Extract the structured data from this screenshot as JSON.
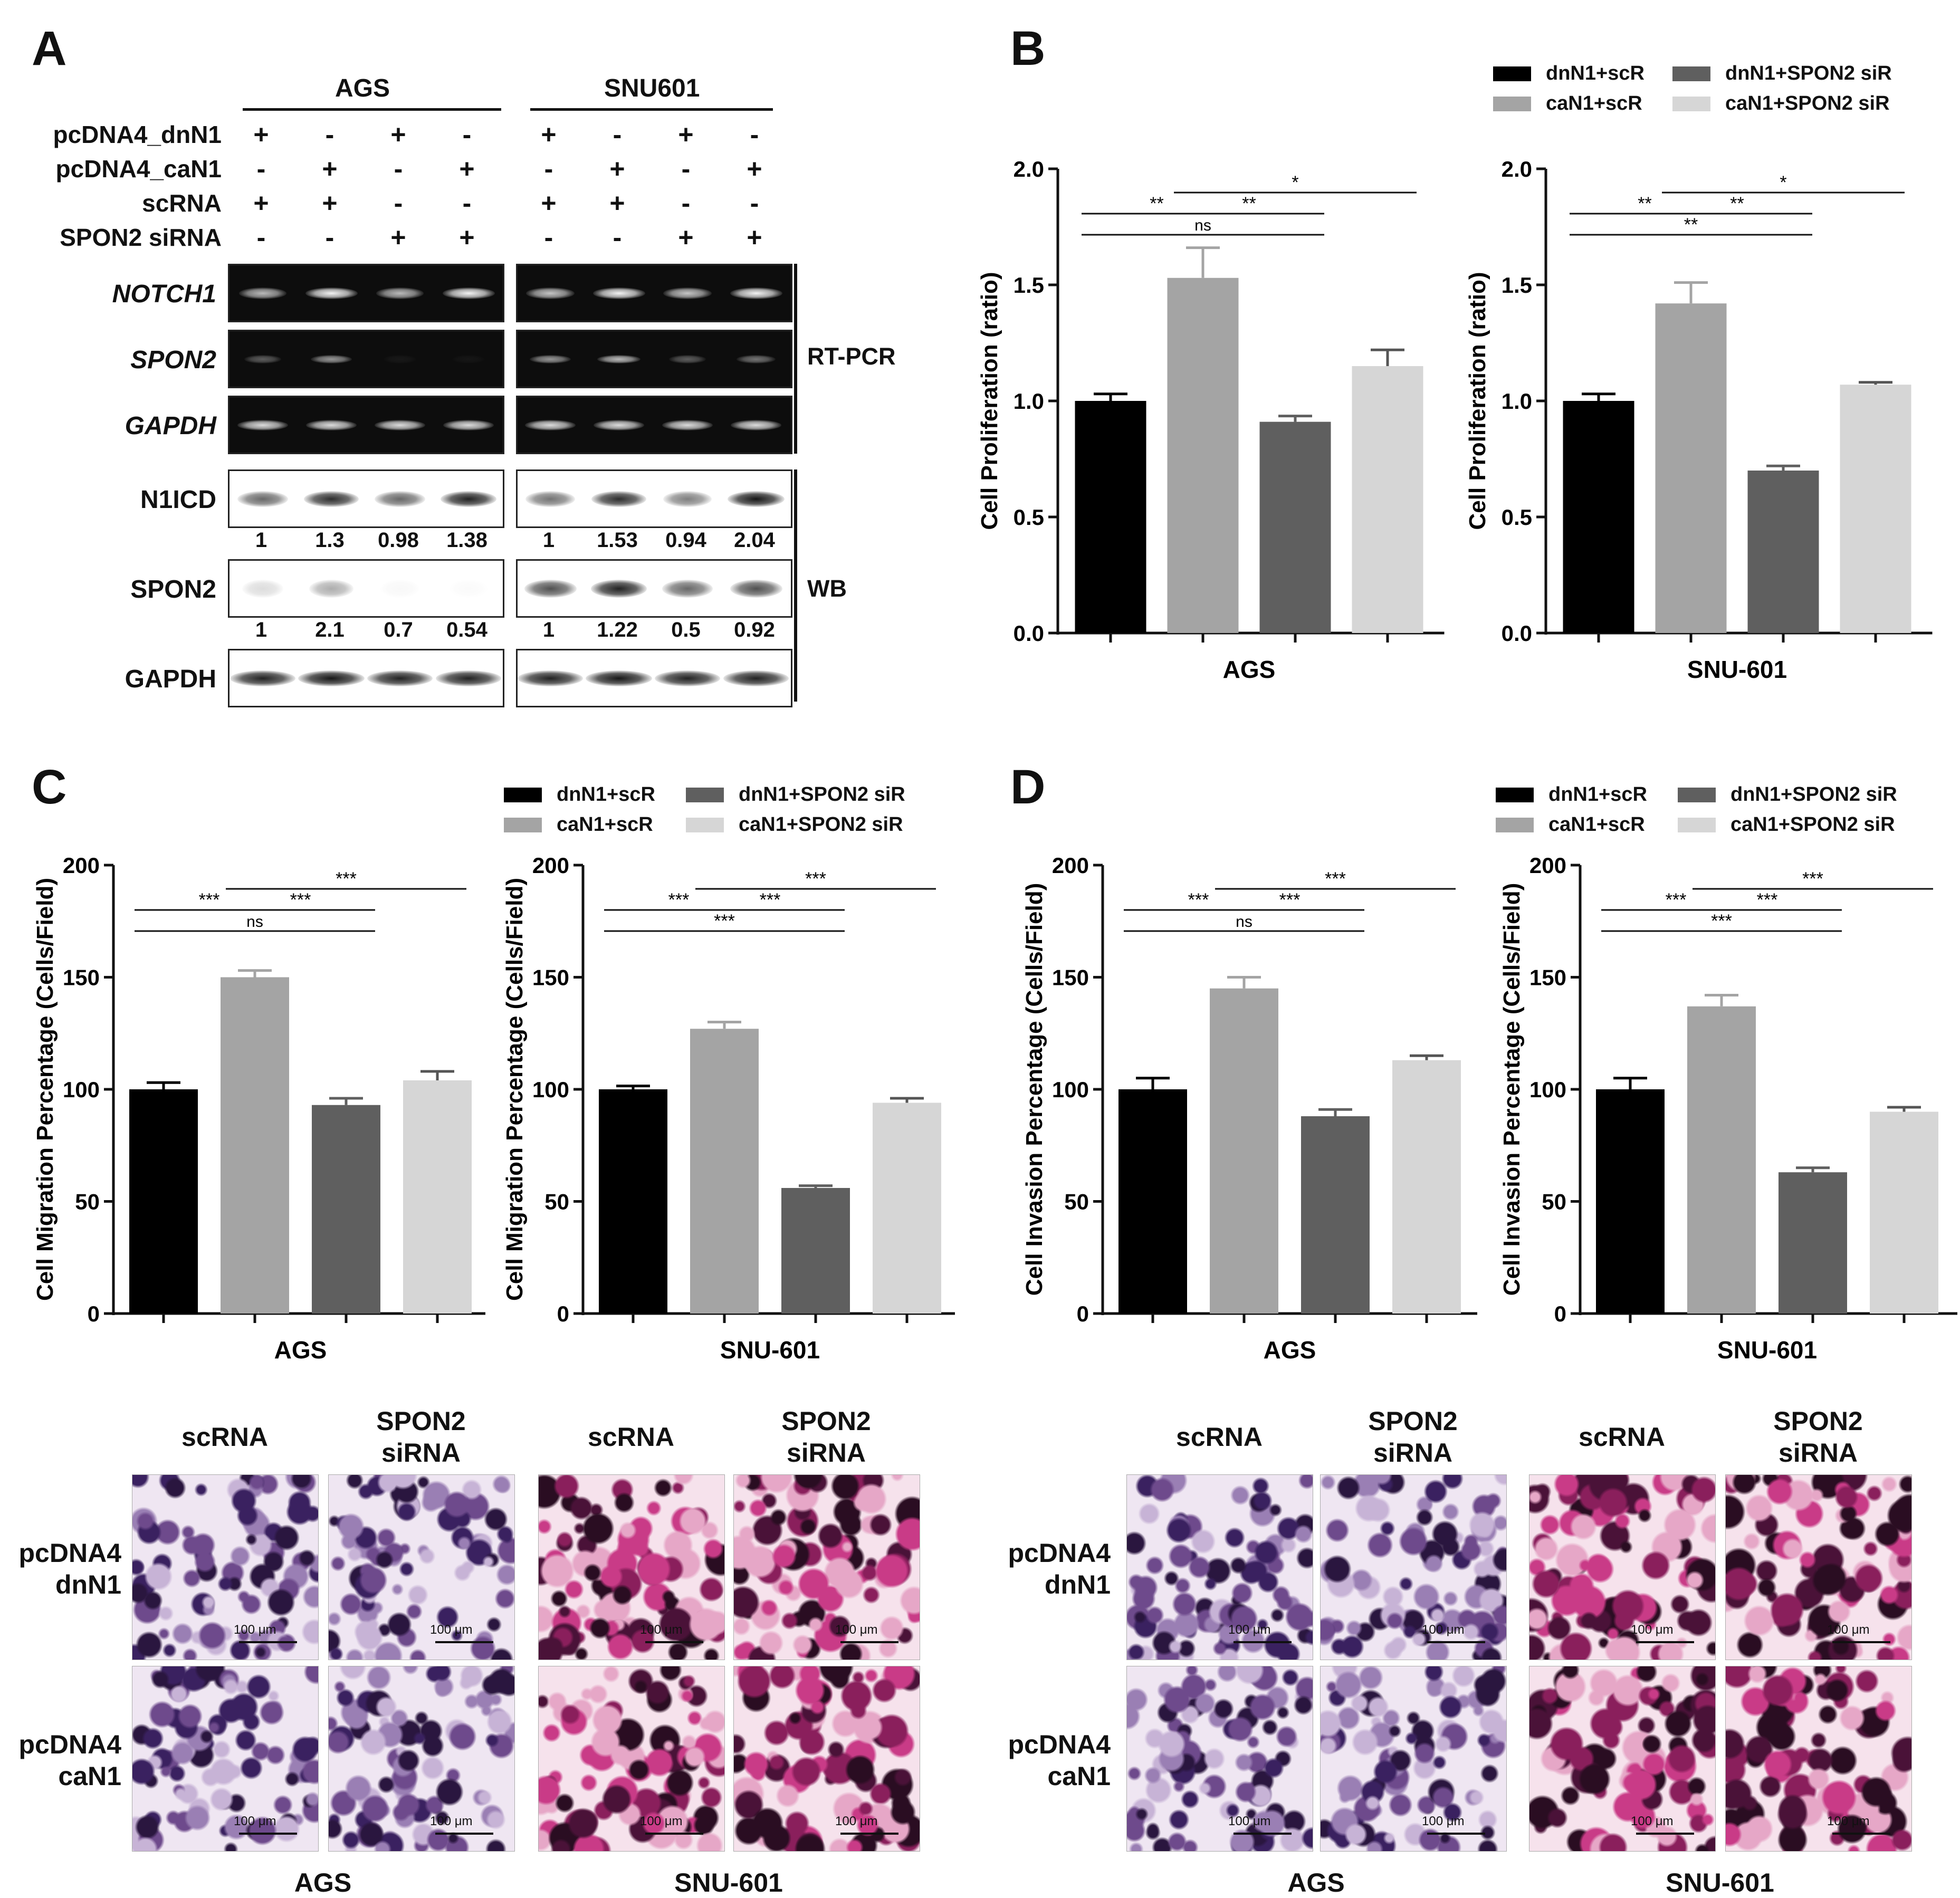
{
  "panel_a": {
    "letter": "A",
    "lines": {
      "ags": "AGS",
      "snu": "SNU601"
    },
    "rows": [
      {
        "name": "pcDNA4_dnN1",
        "ags": [
          "+",
          "-",
          "+",
          "-"
        ],
        "snu": [
          "+",
          "-",
          "+",
          "-"
        ]
      },
      {
        "name": "pcDNA4_caN1",
        "ags": [
          "-",
          "+",
          "-",
          "+"
        ],
        "snu": [
          "-",
          "+",
          "-",
          "+"
        ]
      },
      {
        "name": "scRNA",
        "ags": [
          "+",
          "+",
          "-",
          "-"
        ],
        "snu": [
          "+",
          "+",
          "-",
          "-"
        ]
      },
      {
        "name": "SPON2 siRNA",
        "ags": [
          "-",
          "-",
          "+",
          "+"
        ],
        "snu": [
          "-",
          "-",
          "+",
          "+"
        ]
      }
    ],
    "gels": {
      "notch1": "NOTCH1",
      "spon2_pcr": "SPON2",
      "gapdh_pcr": "GAPDH",
      "n1icd": "N1ICD",
      "spon2_wb": "SPON2",
      "gapdh_wb": "GAPDH"
    },
    "bracket_rt": "RT-PCR",
    "bracket_wb": "WB",
    "n1icd_ratios": {
      "ags": [
        "1",
        "1.3",
        "0.98",
        "1.38"
      ],
      "snu": [
        "1",
        "1.53",
        "0.94",
        "2.04"
      ]
    },
    "spon2_ratios": {
      "ags": [
        "1",
        "2.1",
        "0.7",
        "0.54"
      ],
      "snu": [
        "1",
        "1.22",
        "0.5",
        "0.92"
      ]
    }
  },
  "legend": {
    "items": [
      "dnN1+scR",
      "caN1+scR",
      "dnN1+SPON2 siR",
      "caN1+SPON2 siR"
    ],
    "colors": [
      "#000000",
      "#a4a4a4",
      "#5f5f5f",
      "#d6d6d6"
    ]
  },
  "letters": {
    "b": "B",
    "c": "C",
    "d": "D"
  },
  "chart_data": [
    {
      "id": "B-AGS",
      "type": "bar",
      "categories": [
        "dnN1+scR",
        "caN1+scR",
        "dnN1+SPON2 siR",
        "caN1+SPON2 siR"
      ],
      "values": [
        1.0,
        1.53,
        0.91,
        1.15
      ],
      "errors": [
        0.03,
        0.13,
        0.025,
        0.07
      ],
      "ylim": [
        0,
        2.0
      ],
      "yticks": [
        "0.0",
        "0.5",
        "1.0",
        "1.5",
        "2.0"
      ],
      "ylabel": "Cell Proliferation (ratio)",
      "xlabel": "AGS",
      "sig": [
        {
          "a": 0,
          "b": 1,
          "label": "**",
          "level": 1
        },
        {
          "a": 1,
          "b": 2,
          "label": "**",
          "level": 1
        },
        {
          "a": 1,
          "b": 3,
          "label": "*",
          "level": 2
        },
        {
          "a": 0,
          "b": 2,
          "label": "ns",
          "level": 0
        }
      ]
    },
    {
      "id": "B-SNU",
      "type": "bar",
      "categories": [
        "dnN1+scR",
        "caN1+scR",
        "dnN1+SPON2 siR",
        "caN1+SPON2 siR"
      ],
      "values": [
        1.0,
        1.42,
        0.7,
        1.07
      ],
      "errors": [
        0.03,
        0.09,
        0.02,
        0.01
      ],
      "ylim": [
        0,
        2.0
      ],
      "yticks": [
        "0.0",
        "0.5",
        "1.0",
        "1.5",
        "2.0"
      ],
      "ylabel": "Cell Proliferation (ratio)",
      "xlabel": "SNU-601",
      "sig": [
        {
          "a": 0,
          "b": 1,
          "label": "**",
          "level": 1
        },
        {
          "a": 1,
          "b": 2,
          "label": "**",
          "level": 1
        },
        {
          "a": 1,
          "b": 3,
          "label": "*",
          "level": 2
        },
        {
          "a": 0,
          "b": 2,
          "label": "**",
          "level": 0
        }
      ]
    },
    {
      "id": "C-AGS",
      "type": "bar",
      "categories": [
        "dnN1+scR",
        "caN1+scR",
        "dnN1+SPON2 siR",
        "caN1+SPON2 siR"
      ],
      "values": [
        100,
        150,
        93,
        104
      ],
      "errors": [
        3,
        3,
        3,
        4
      ],
      "ylim": [
        0,
        200
      ],
      "yticks": [
        "0",
        "50",
        "100",
        "150",
        "200"
      ],
      "ylabel": "Cell Migration Percentage  (Cells/Field)",
      "xlabel": "AGS",
      "sig": [
        {
          "a": 0,
          "b": 1,
          "label": "***",
          "level": 1
        },
        {
          "a": 1,
          "b": 2,
          "label": "***",
          "level": 1
        },
        {
          "a": 1,
          "b": 3,
          "label": "***",
          "level": 2
        },
        {
          "a": 0,
          "b": 2,
          "label": "ns",
          "level": 0
        }
      ]
    },
    {
      "id": "C-SNU",
      "type": "bar",
      "categories": [
        "dnN1+scR",
        "caN1+scR",
        "dnN1+SPON2 siR",
        "caN1+SPON2 siR"
      ],
      "values": [
        100,
        127,
        56,
        94
      ],
      "errors": [
        1.5,
        3,
        1,
        2
      ],
      "ylim": [
        0,
        200
      ],
      "yticks": [
        "0",
        "50",
        "100",
        "150",
        "200"
      ],
      "ylabel": "Cell Migration Percentage  (Cells/Field)",
      "xlabel": "SNU-601",
      "sig": [
        {
          "a": 0,
          "b": 1,
          "label": "***",
          "level": 1
        },
        {
          "a": 1,
          "b": 2,
          "label": "***",
          "level": 1
        },
        {
          "a": 1,
          "b": 3,
          "label": "***",
          "level": 2
        },
        {
          "a": 0,
          "b": 2,
          "label": "***",
          "level": 0
        }
      ]
    },
    {
      "id": "D-AGS",
      "type": "bar",
      "categories": [
        "dnN1+scR",
        "caN1+scR",
        "dnN1+SPON2 siR",
        "caN1+SPON2 siR"
      ],
      "values": [
        100,
        145,
        88,
        113
      ],
      "errors": [
        5,
        5,
        3,
        2
      ],
      "ylim": [
        0,
        200
      ],
      "yticks": [
        "0",
        "50",
        "100",
        "150",
        "200"
      ],
      "ylabel": "Cell Invasion Percentage  (Cells/Field)",
      "xlabel": "AGS",
      "sig": [
        {
          "a": 0,
          "b": 1,
          "label": "***",
          "level": 1
        },
        {
          "a": 1,
          "b": 2,
          "label": "***",
          "level": 1
        },
        {
          "a": 1,
          "b": 3,
          "label": "***",
          "level": 2
        },
        {
          "a": 0,
          "b": 2,
          "label": "ns",
          "level": 0
        }
      ]
    },
    {
      "id": "D-SNU",
      "type": "bar",
      "categories": [
        "dnN1+scR",
        "caN1+scR",
        "dnN1+SPON2 siR",
        "caN1+SPON2 siR"
      ],
      "values": [
        100,
        137,
        63,
        90
      ],
      "errors": [
        5,
        5,
        2,
        2
      ],
      "ylim": [
        0,
        200
      ],
      "yticks": [
        "0",
        "50",
        "100",
        "150",
        "200"
      ],
      "ylabel": "Cell Invasion Percentage  (Cells/Field)",
      "xlabel": "SNU-601",
      "sig": [
        {
          "a": 0,
          "b": 1,
          "label": "***",
          "level": 1
        },
        {
          "a": 1,
          "b": 2,
          "label": "***",
          "level": 1
        },
        {
          "a": 1,
          "b": 3,
          "label": "***",
          "level": 2
        },
        {
          "a": 0,
          "b": 2,
          "label": "***",
          "level": 0
        }
      ]
    }
  ],
  "micro": {
    "col_scrna": "scRNA",
    "col_spon2": [
      "SPON2",
      "siRNA"
    ],
    "row_dn": [
      "pcDNA4",
      "dnN1"
    ],
    "row_ca": [
      "pcDNA4",
      "caN1"
    ],
    "line_ags": "AGS",
    "line_snu": "SNU-601",
    "scale": "100 μm"
  }
}
